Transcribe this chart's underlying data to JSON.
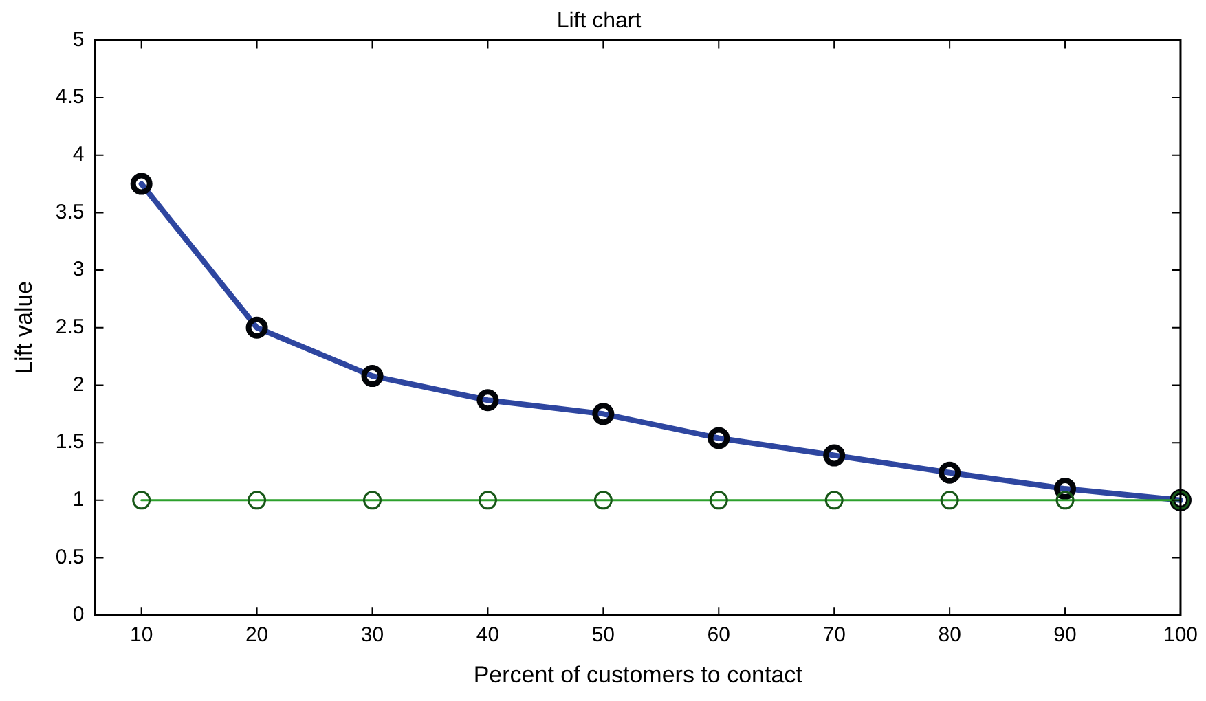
{
  "chart_data": {
    "type": "line",
    "title": "Lift chart",
    "xlabel": "Percent of customers to contact",
    "ylabel": "Lift value",
    "x": [
      10,
      20,
      30,
      40,
      50,
      60,
      70,
      80,
      90,
      100
    ],
    "series": [
      {
        "color": "#2e46a0",
        "values": [
          3.75,
          2.5,
          2.08,
          1.87,
          1.75,
          1.54,
          1.39,
          1.24,
          1.1,
          1
        ]
      },
      {
        "color": "#2ca02c",
        "values": [
          1,
          1,
          1,
          1,
          1,
          1,
          1,
          1,
          1,
          1
        ]
      }
    ],
    "xlim": [
      6,
      100
    ],
    "xticks": [
      10,
      20,
      30,
      40,
      50,
      60,
      70,
      80,
      90,
      100
    ],
    "ylim": [
      0,
      5
    ],
    "yticks": [
      0,
      0.5,
      1,
      1.5,
      2,
      2.5,
      3,
      3.5,
      4,
      4.5,
      5
    ],
    "grid": false,
    "legend": false,
    "marker": "circle",
    "line_style": "solid"
  }
}
